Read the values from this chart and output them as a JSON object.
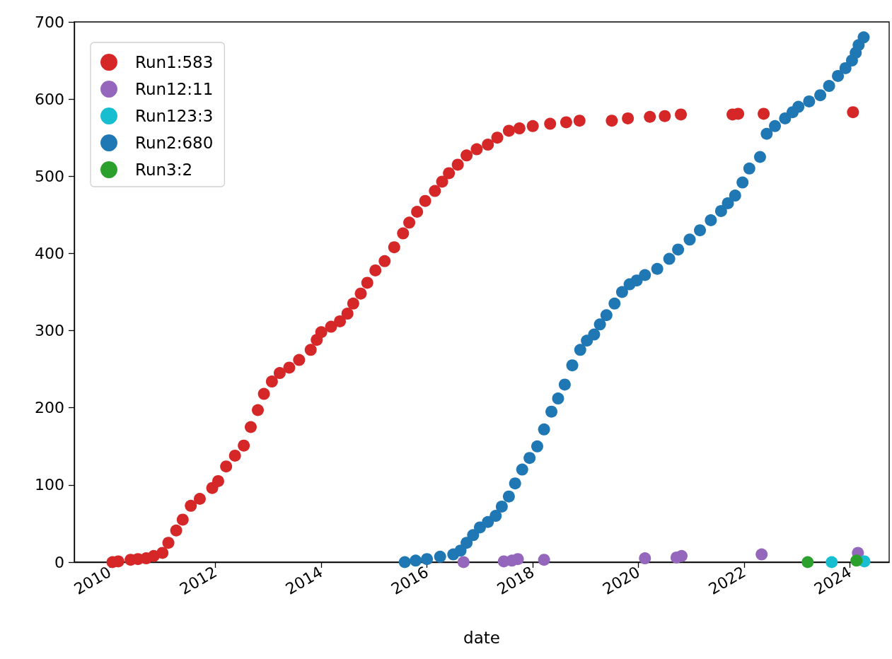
{
  "chart_data": {
    "type": "scatter",
    "xlabel": "date",
    "marker": "circle",
    "legend": "top left",
    "xlim": [
      "2009-05-01",
      "2024-09-28"
    ],
    "xticks": [
      "2010",
      "2012",
      "2014",
      "2016",
      "2018",
      "2020",
      "2022",
      "2024"
    ],
    "ylim": [
      0,
      700
    ],
    "yticks": [
      0,
      100,
      200,
      300,
      400,
      500,
      600,
      700
    ],
    "series": [
      {
        "name": "Run1:583",
        "color": "#d62728",
        "x": [
          "2010-01-20",
          "2010-03-01",
          "2010-05-25",
          "2010-07-15",
          "2010-09-10",
          "2010-11-01",
          "2010-12-31",
          "2011-02-10",
          "2011-04-05",
          "2011-05-20",
          "2011-07-15",
          "2011-09-15",
          "2011-12-10",
          "2012-01-20",
          "2012-03-15",
          "2012-05-15",
          "2012-07-15",
          "2012-09-01",
          "2012-10-20",
          "2012-12-01",
          "2013-01-25",
          "2013-03-20",
          "2013-05-25",
          "2013-08-01",
          "2013-10-20",
          "2013-12-01",
          "2014-01-01",
          "2014-03-10",
          "2014-05-10",
          "2014-07-01",
          "2014-08-10",
          "2014-10-01",
          "2014-11-15",
          "2015-01-10",
          "2015-03-15",
          "2015-05-20",
          "2015-07-20",
          "2015-09-01",
          "2015-10-25",
          "2015-12-20",
          "2016-02-25",
          "2016-04-15",
          "2016-06-01",
          "2016-08-01",
          "2016-10-01",
          "2016-12-10",
          "2017-02-25",
          "2017-05-01",
          "2017-07-20",
          "2017-10-01",
          "2018-01-01",
          "2018-05-01",
          "2018-08-20",
          "2018-11-20",
          "2019-07-01",
          "2019-10-20",
          "2020-03-20",
          "2020-07-01",
          "2020-10-20",
          "2021-10-12",
          "2021-11-20",
          "2022-05-15",
          "2024-01-22"
        ],
        "values": [
          0,
          1,
          3,
          4,
          5,
          8,
          12,
          25,
          41,
          55,
          73,
          82,
          96,
          105,
          124,
          138,
          151,
          175,
          197,
          218,
          234,
          245,
          252,
          262,
          275,
          288,
          298,
          305,
          312,
          322,
          335,
          348,
          362,
          378,
          390,
          408,
          426,
          440,
          454,
          468,
          481,
          493,
          504,
          515,
          527,
          535,
          541,
          550,
          559,
          562,
          565,
          568,
          570,
          572,
          572,
          575,
          577,
          578,
          580,
          580,
          581,
          581,
          583
        ]
      },
      {
        "name": "Run12:11",
        "color": "#9467bd",
        "x": [
          "2016-09-10",
          "2017-06-15",
          "2017-08-10",
          "2017-09-20",
          "2018-03-20",
          "2020-02-15",
          "2020-08-25",
          "2020-09-20",
          "2020-10-25",
          "2022-05-01",
          "2024-02-25"
        ],
        "values": [
          0,
          1,
          2,
          4,
          3,
          5,
          null,
          6,
          8,
          10,
          12
        ]
      },
      {
        "name": "Run123:3",
        "color": "#17becf",
        "x": [
          "2023-08-28",
          "2024-03-20",
          "2024-04-10"
        ],
        "values": [
          0,
          null,
          1
        ]
      },
      {
        "name": "Run2:680",
        "color": "#1f77b4",
        "x": [
          "2015-08-01",
          "2015-10-15",
          "2016-01-01",
          "2016-04-01",
          "2016-07-01",
          "2016-08-20",
          "2016-10-01",
          "2016-11-15",
          "2017-01-01",
          "2017-02-25",
          "2017-04-20",
          "2017-06-01",
          "2017-07-20",
          "2017-09-01",
          "2017-10-20",
          "2017-12-10",
          "2018-02-01",
          "2018-03-20",
          "2018-05-10",
          "2018-06-25",
          "2018-08-10",
          "2018-10-01",
          "2018-11-25",
          "2019-01-10",
          "2019-03-01",
          "2019-04-10",
          "2019-05-25",
          "2019-07-20",
          "2019-09-10",
          "2019-11-01",
          "2019-12-20",
          "2020-02-15",
          "2020-05-10",
          "2020-08-01",
          "2020-10-01",
          "2020-12-20",
          "2021-03-01",
          "2021-05-15",
          "2021-07-25",
          "2021-09-10",
          "2021-10-30",
          "2021-12-20",
          "2022-02-05",
          "2022-04-20",
          "2022-06-05",
          "2022-08-01",
          "2022-10-10",
          "2022-12-01",
          "2023-01-10",
          "2023-03-25",
          "2023-06-10",
          "2023-08-10",
          "2023-10-10",
          "2023-12-01",
          "2024-01-15",
          "2024-02-10",
          "2024-03-01",
          "2024-04-05"
        ],
        "values": [
          0,
          2,
          4,
          7,
          10,
          15,
          25,
          35,
          45,
          52,
          60,
          72,
          85,
          102,
          120,
          135,
          150,
          172,
          195,
          212,
          230,
          255,
          275,
          287,
          295,
          308,
          320,
          335,
          350,
          360,
          365,
          372,
          380,
          393,
          405,
          418,
          430,
          443,
          455,
          465,
          475,
          492,
          510,
          525,
          555,
          565,
          575,
          583,
          590,
          597,
          605,
          617,
          630,
          640,
          650,
          660,
          670,
          680
        ]
      },
      {
        "name": "Run3:2",
        "color": "#2ca02c",
        "x": [
          "2023-03-15",
          "2024-02-15"
        ],
        "values": [
          0,
          2
        ]
      }
    ]
  }
}
